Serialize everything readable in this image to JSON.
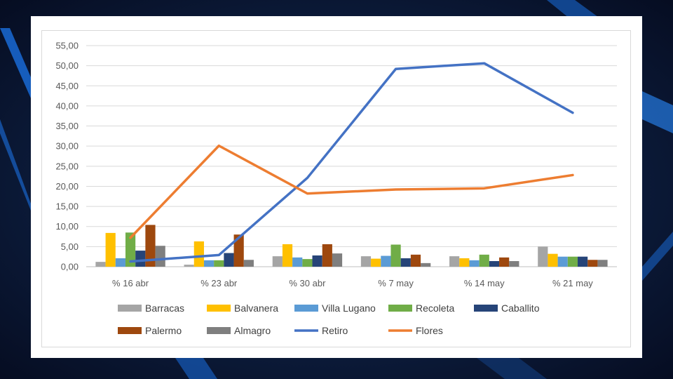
{
  "chart_data": {
    "type": "bar",
    "categories": [
      "% 16 abr",
      "% 23 abr",
      "% 30 abr",
      "% 7 may",
      "% 14 may",
      "% 21 may"
    ],
    "ylim": [
      0,
      55
    ],
    "yticks": [
      "0,00",
      "5,00",
      "10,00",
      "15,00",
      "20,00",
      "25,00",
      "30,00",
      "35,00",
      "40,00",
      "45,00",
      "50,00",
      "55,00"
    ],
    "grid": true,
    "legend_position": "bottom",
    "bar_series": [
      {
        "name": "Barracas",
        "color": "#a5a5a5",
        "values": [
          1.2,
          0.5,
          2.6,
          2.6,
          2.6,
          5.0
        ]
      },
      {
        "name": "Balvanera",
        "color": "#ffc000",
        "values": [
          8.4,
          6.3,
          5.6,
          2.0,
          2.1,
          3.2
        ]
      },
      {
        "name": "Villa Lugano",
        "color": "#5b9bd5",
        "values": [
          2.1,
          1.6,
          2.3,
          2.7,
          1.6,
          2.5
        ]
      },
      {
        "name": "Recoleta",
        "color": "#70ad47",
        "values": [
          8.5,
          1.6,
          1.9,
          5.5,
          3.0,
          2.5
        ]
      },
      {
        "name": "Caballito",
        "color": "#264478",
        "values": [
          4.0,
          3.4,
          2.8,
          2.1,
          1.4,
          2.5
        ]
      },
      {
        "name": "Palermo",
        "color": "#9e480e",
        "values": [
          10.4,
          8.0,
          5.6,
          3.0,
          2.3,
          1.7
        ]
      },
      {
        "name": "Almagro",
        "color": "#7f7f7f",
        "values": [
          5.2,
          1.7,
          3.3,
          0.9,
          1.4,
          1.7
        ]
      }
    ],
    "line_series": [
      {
        "name": "Retiro",
        "color": "#4472c4",
        "values": [
          1.3,
          2.9,
          22.1,
          49.2,
          50.6,
          38.3
        ]
      },
      {
        "name": "Flores",
        "color": "#ed7d31",
        "values": [
          7.2,
          30.1,
          18.2,
          19.2,
          19.5,
          22.8
        ]
      }
    ]
  }
}
